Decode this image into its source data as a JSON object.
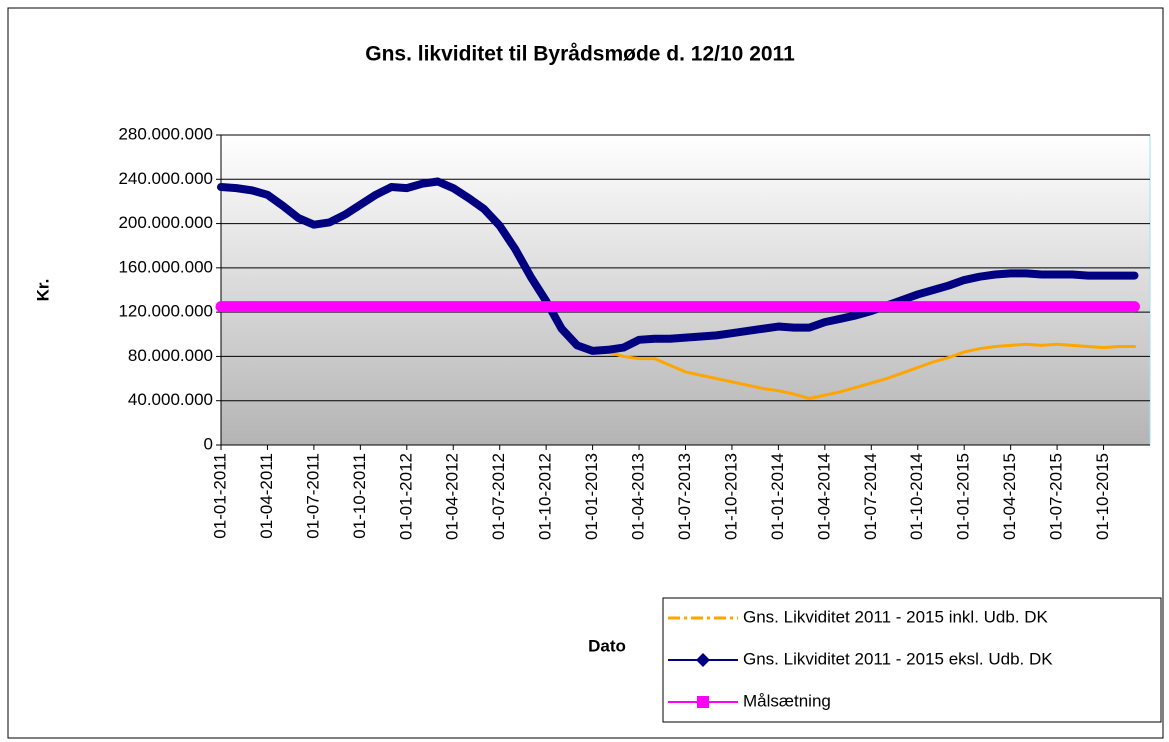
{
  "chart_data": {
    "type": "line",
    "title": "Gns. likviditet til Byrådsmøde d. 12/10 2011",
    "y_label": "Kr.",
    "x_label": "Dato",
    "categories": [
      "01-01-2011",
      null,
      null,
      "01-04-2011",
      null,
      null,
      "01-07-2011",
      null,
      null,
      "01-10-2011",
      null,
      null,
      "01-01-2012",
      null,
      null,
      "01-04-2012",
      null,
      null,
      "01-07-2012",
      null,
      null,
      "01-10-2012",
      null,
      null,
      "01-01-2013",
      null,
      null,
      "01-04-2013",
      null,
      null,
      "01-07-2013",
      null,
      null,
      "01-10-2013",
      null,
      null,
      "01-01-2014",
      null,
      null,
      "01-04-2014",
      null,
      null,
      "01-07-2014",
      null,
      null,
      "01-10-2014",
      null,
      null,
      "01-01-2015",
      null,
      null,
      "01-04-2015",
      null,
      null,
      "01-07-2015",
      null,
      null,
      "01-10-2015",
      null,
      null
    ],
    "series": [
      {
        "name": "Gns. Likviditet 2011 - 2015 inkl. Udb. DK",
        "color": "#ffa500",
        "values": [
          233000000,
          232000000,
          230000000,
          226000000,
          216000000,
          205000000,
          199000000,
          201000000,
          208000000,
          217000000,
          226000000,
          233000000,
          232000000,
          236000000,
          238000000,
          232000000,
          223000000,
          213000000,
          198000000,
          177000000,
          152000000,
          130000000,
          105000000,
          90000000,
          85000000,
          84000000,
          80000000,
          78000000,
          78000000,
          72000000,
          66000000,
          63000000,
          60000000,
          57000000,
          54000000,
          51000000,
          49000000,
          46000000,
          42000000,
          45000000,
          48000000,
          52000000,
          56000000,
          60000000,
          65000000,
          70000000,
          75000000,
          79000000,
          84000000,
          87000000,
          89000000,
          90000000,
          91000000,
          90000000,
          91000000,
          90000000,
          89000000,
          88000000,
          89000000,
          89000000
        ]
      },
      {
        "name": "Gns. Likviditet 2011 - 2015 eksl. Udb. DK",
        "color": "#000080",
        "marker": "diamond",
        "values": [
          233000000,
          232000000,
          230000000,
          226000000,
          216000000,
          205000000,
          199000000,
          201000000,
          208000000,
          217000000,
          226000000,
          233000000,
          232000000,
          236000000,
          238000000,
          232000000,
          223000000,
          213000000,
          198000000,
          177000000,
          152000000,
          130000000,
          105000000,
          90000000,
          85000000,
          86000000,
          88000000,
          95000000,
          96000000,
          96000000,
          97000000,
          98000000,
          99000000,
          101000000,
          103000000,
          105000000,
          107000000,
          106000000,
          106000000,
          111000000,
          114000000,
          117000000,
          121000000,
          126000000,
          131000000,
          136000000,
          140000000,
          144000000,
          149000000,
          152000000,
          154000000,
          155000000,
          155000000,
          154000000,
          154000000,
          154000000,
          153000000,
          153000000,
          153000000,
          153000000
        ]
      },
      {
        "name": "Målsætning",
        "color": "#ff00ff",
        "marker": "square",
        "values": [
          125000000,
          125000000,
          125000000,
          125000000,
          125000000,
          125000000,
          125000000,
          125000000,
          125000000,
          125000000,
          125000000,
          125000000,
          125000000,
          125000000,
          125000000,
          125000000,
          125000000,
          125000000,
          125000000,
          125000000,
          125000000,
          125000000,
          125000000,
          125000000,
          125000000,
          125000000,
          125000000,
          125000000,
          125000000,
          125000000,
          125000000,
          125000000,
          125000000,
          125000000,
          125000000,
          125000000,
          125000000,
          125000000,
          125000000,
          125000000,
          125000000,
          125000000,
          125000000,
          125000000,
          125000000,
          125000000,
          125000000,
          125000000,
          125000000,
          125000000,
          125000000,
          125000000,
          125000000,
          125000000,
          125000000,
          125000000,
          125000000,
          125000000,
          125000000,
          125000000
        ]
      }
    ],
    "ylim": [
      0,
      280000000
    ],
    "yticks": [
      0,
      {
        "value": 40000000,
        "label": "40.000.000"
      },
      {
        "value": 80000000,
        "label": "80.000.000"
      },
      {
        "value": 120000000,
        "label": "120.000.000"
      },
      {
        "value": 160000000,
        "label": "160.000.000"
      },
      {
        "value": 200000000,
        "label": "200.000.000"
      },
      {
        "value": 240000000,
        "label": "240.000.000"
      },
      {
        "value": 280000000,
        "label": "280.000.000"
      }
    ],
    "grid": true,
    "legend": "bottom-right"
  }
}
